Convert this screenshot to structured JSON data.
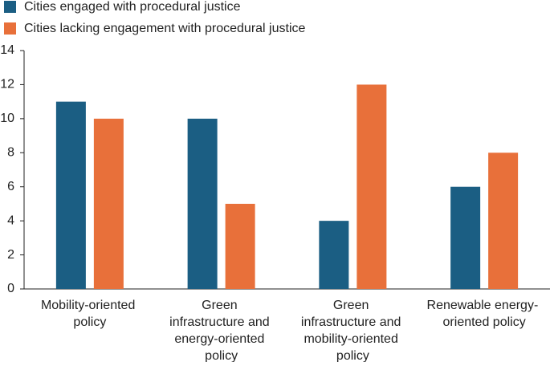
{
  "chart_data": {
    "type": "bar",
    "categories": [
      "Mobility-oriented\npolicy",
      "Green\ninfrastructure and\nenergy-oriented\npolicy",
      "Green\ninfrastructure and\nmobility-oriented\npolicy",
      "Renewable energy-\noriented policy"
    ],
    "series": [
      {
        "name": "Cities engaged with procedural justice",
        "color": "#1b5e83",
        "values": [
          11,
          10,
          4,
          6
        ]
      },
      {
        "name": "Cities lacking engagement with procedural justice",
        "color": "#e8703a",
        "values": [
          10,
          5,
          12,
          8
        ]
      }
    ],
    "ylim": [
      0,
      14
    ],
    "yticks": [
      0,
      2,
      4,
      6,
      8,
      10,
      12,
      14
    ],
    "grid": false,
    "legend": "top-left"
  }
}
